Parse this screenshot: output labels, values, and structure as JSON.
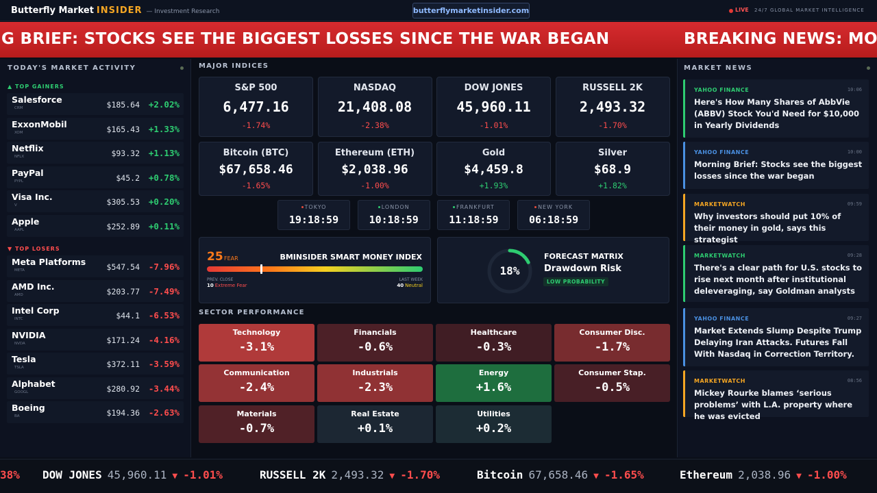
{
  "header": {
    "brand": "Butterfly Market",
    "brand_accent": "INSIDER",
    "tagline": "— Investment Research",
    "url": "butterflymarketinsider.com",
    "live": "LIVE",
    "motto": "24/7 GLOBAL MARKET INTELLIGENCE"
  },
  "banner": [
    "G BRIEF: STOCKS SEE THE BIGGEST LOSSES SINCE THE WAR BEGAN",
    "BREAKING NEWS: MO"
  ],
  "activity": {
    "title": "TODAY'S MARKET ACTIVITY",
    "gainers_title": "▲ TOP GAINERS",
    "gainers": [
      {
        "name": "Salesforce",
        "ticker": "CRM",
        "price": "$185.64",
        "change": "+2.02%"
      },
      {
        "name": "ExxonMobil",
        "ticker": "XOM",
        "price": "$165.43",
        "change": "+1.33%"
      },
      {
        "name": "Netflix",
        "ticker": "NFLX",
        "price": "$93.32",
        "change": "+1.13%"
      },
      {
        "name": "PayPal",
        "ticker": "PYPL",
        "price": "$45.2",
        "change": "+0.78%"
      },
      {
        "name": "Visa Inc.",
        "ticker": "V",
        "price": "$305.53",
        "change": "+0.20%"
      },
      {
        "name": "Apple",
        "ticker": "AAPL",
        "price": "$252.89",
        "change": "+0.11%"
      }
    ],
    "losers_title": "▼ TOP LOSERS",
    "losers": [
      {
        "name": "Meta Platforms",
        "ticker": "META",
        "price": "$547.54",
        "change": "-7.96%"
      },
      {
        "name": "AMD Inc.",
        "ticker": "AMD",
        "price": "$203.77",
        "change": "-7.49%"
      },
      {
        "name": "Intel Corp",
        "ticker": "INTC",
        "price": "$44.1",
        "change": "-6.53%"
      },
      {
        "name": "NVIDIA",
        "ticker": "NVDA",
        "price": "$171.24",
        "change": "-4.16%"
      },
      {
        "name": "Tesla",
        "ticker": "TSLA",
        "price": "$372.11",
        "change": "-3.59%"
      },
      {
        "name": "Alphabet",
        "ticker": "GOOGL",
        "price": "$280.92",
        "change": "-3.44%"
      },
      {
        "name": "Boeing",
        "ticker": "BA",
        "price": "$194.36",
        "change": "-2.63%"
      }
    ]
  },
  "indices": {
    "title": "MAJOR INDICES",
    "cards": [
      {
        "name": "S&P 500",
        "price": "6,477.16",
        "change": "-1.74%"
      },
      {
        "name": "NASDAQ",
        "price": "21,408.08",
        "change": "-2.38%"
      },
      {
        "name": "DOW JONES",
        "price": "45,960.11",
        "change": "-1.01%"
      },
      {
        "name": "RUSSELL 2K",
        "price": "2,493.32",
        "change": "-1.70%"
      },
      {
        "name": "Bitcoin (BTC)",
        "price": "$67,658.46",
        "change": "-1.65%"
      },
      {
        "name": "Ethereum (ETH)",
        "price": "$2,038.96",
        "change": "-1.00%"
      },
      {
        "name": "Gold",
        "price": "$4,459.8",
        "change": "+1.93%"
      },
      {
        "name": "Silver",
        "price": "$68.9",
        "change": "+1.82%"
      }
    ]
  },
  "clocks": [
    {
      "city": "TOKYO",
      "time": "19:18:59",
      "status_color": "#e74c3c"
    },
    {
      "city": "LONDON",
      "time": "10:18:59",
      "status_color": "#2ecc71"
    },
    {
      "city": "FRANKFURT",
      "time": "11:18:59",
      "status_color": "#2ecc71"
    },
    {
      "city": "NEW YORK",
      "time": "06:18:59",
      "status_color": "#e74c3c"
    }
  ],
  "smart_money": {
    "value": 25,
    "range": [
      0,
      100
    ],
    "mood": "FEAR",
    "title": "BMINSIDER SMART MONEY INDEX",
    "prev_label": "PREV. CLOSE",
    "prev_value": "10",
    "prev_mood": "Extreme Fear",
    "week_label": "LAST WEEK",
    "week_value": "40",
    "week_mood": "Neutral"
  },
  "forecast": {
    "value": 18,
    "label": "18%",
    "title": "FORECAST MATRIX",
    "subtitle": "Drawdown Risk",
    "badge": "LOW PROBABILITY"
  },
  "sectors": {
    "title": "SECTOR PERFORMANCE",
    "tiles": [
      {
        "name": "Technology",
        "value": -3.1,
        "label": "-3.1%"
      },
      {
        "name": "Financials",
        "value": -0.6,
        "label": "-0.6%"
      },
      {
        "name": "Healthcare",
        "value": -0.3,
        "label": "-0.3%"
      },
      {
        "name": "Consumer Disc.",
        "value": -1.7,
        "label": "-1.7%"
      },
      {
        "name": "Communication",
        "value": -2.4,
        "label": "-2.4%"
      },
      {
        "name": "Industrials",
        "value": -2.3,
        "label": "-2.3%"
      },
      {
        "name": "Energy",
        "value": 1.6,
        "label": "+1.6%"
      },
      {
        "name": "Consumer Stap.",
        "value": -0.5,
        "label": "-0.5%"
      },
      {
        "name": "Materials",
        "value": -0.7,
        "label": "-0.7%"
      },
      {
        "name": "Real Estate",
        "value": 0.1,
        "label": "+0.1%"
      },
      {
        "name": "Utilities",
        "value": 0.2,
        "label": "+0.2%"
      }
    ]
  },
  "news": {
    "title": "MARKET NEWS",
    "items": [
      {
        "source": "YAHOO FINANCE",
        "time": "10:06",
        "color": "#2ecc71",
        "headline": "Here's How Many Shares of AbbVie (ABBV) Stock You'd Need for $10,000 in Yearly Dividends"
      },
      {
        "source": "YAHOO FINANCE",
        "time": "10:00",
        "color": "#4a90e2",
        "headline": "Morning Brief: Stocks see the biggest losses since the war began"
      },
      {
        "source": "MARKETWATCH",
        "time": "09:59",
        "color": "#f5a623",
        "headline": "Why investors should put 10% of their money in gold, says this strategist"
      },
      {
        "source": "MARKETWATCH",
        "time": "09:28",
        "color": "#2ecc71",
        "headline": "There's a clear path for U.S. stocks to rise next month after institutional deleveraging, say Goldman analysts"
      },
      {
        "source": "YAHOO FINANCE",
        "time": "09:27",
        "color": "#4a90e2",
        "headline": "Market Extends Slump Despite Trump Delaying Iran Attacks. Futures Fall With Nasdaq in Correction Territory."
      },
      {
        "source": "MARKETWATCH",
        "time": "08:56",
        "color": "#f5a623",
        "headline": "Mickey Rourke blames ‘serious problems’ with L.A. property where he was evicted"
      }
    ]
  },
  "ticker": [
    {
      "change": "38%"
    },
    {
      "name": "DOW JONES",
      "price": "45,960.11",
      "arrow": "▼",
      "change": "-1.01%"
    },
    {
      "name": "RUSSELL 2K",
      "price": "2,493.32",
      "arrow": "▼",
      "change": "-1.70%"
    },
    {
      "name": "Bitcoin",
      "price": "67,658.46",
      "arrow": "▼",
      "change": "-1.65%"
    },
    {
      "name": "Ethereum",
      "price": "2,038.96",
      "arrow": "▼",
      "change": "-1.00%"
    }
  ]
}
